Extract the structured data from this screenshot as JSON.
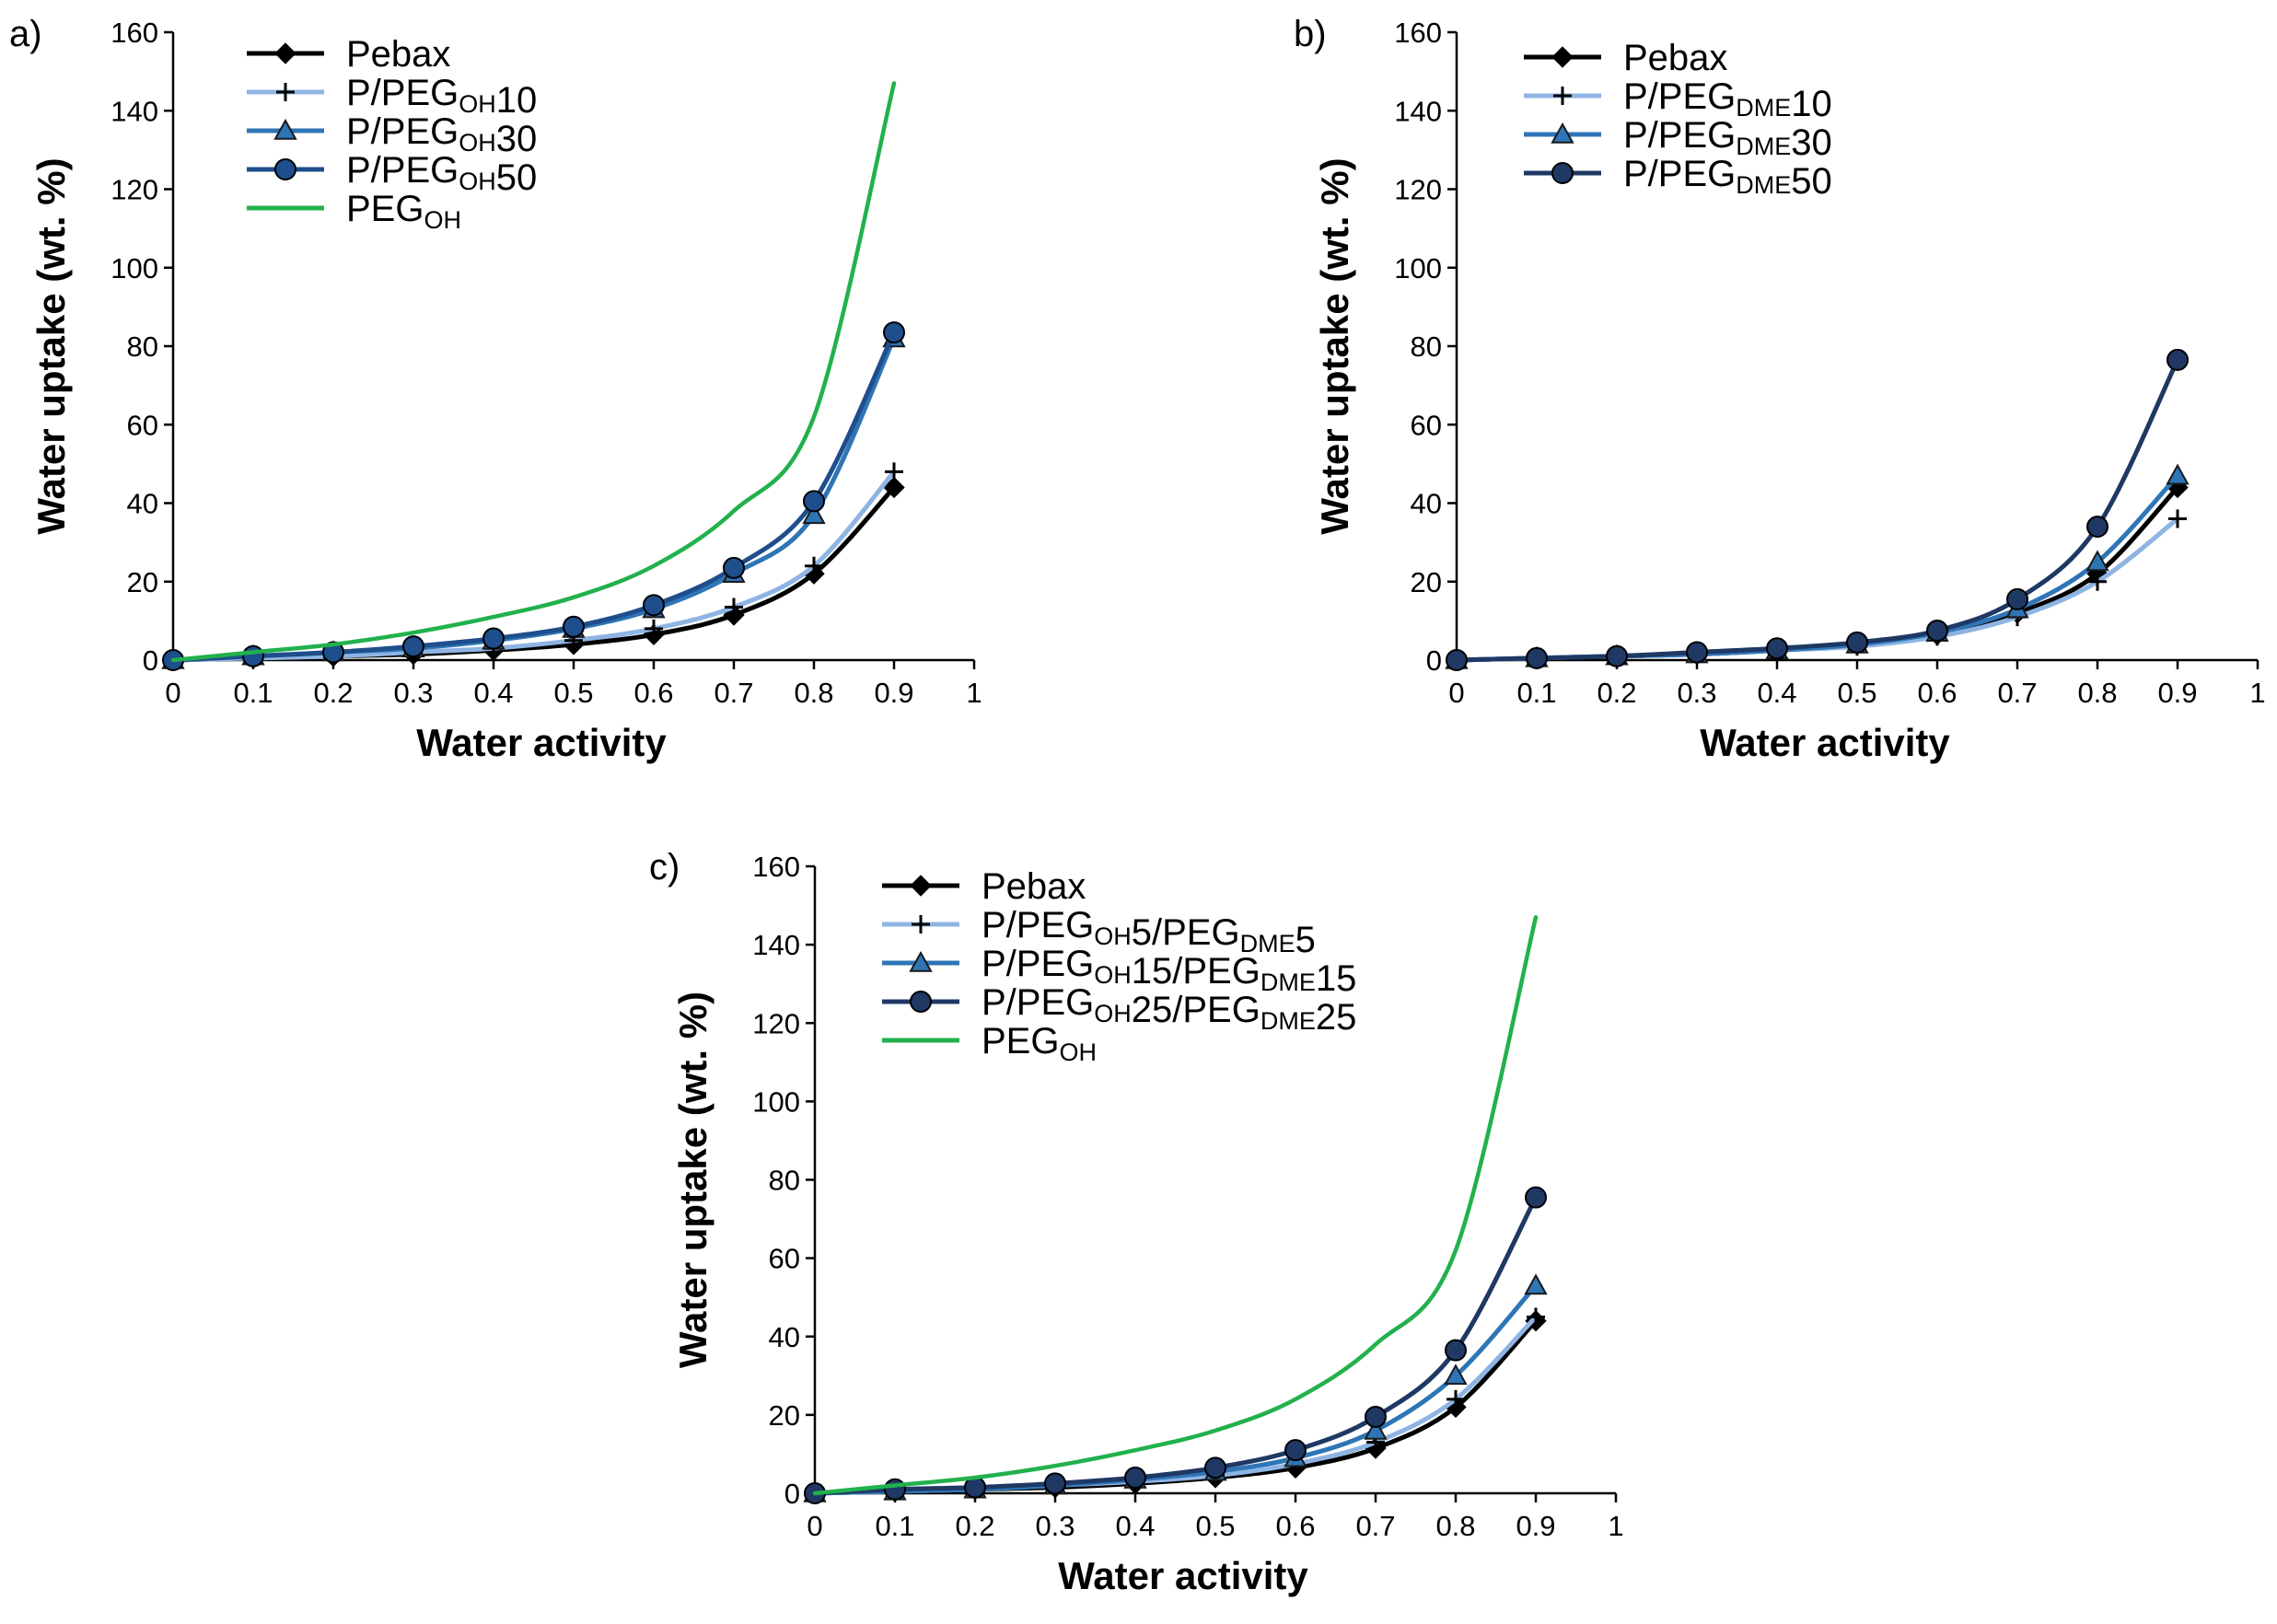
{
  "chart_data": [
    {
      "id": "a",
      "type": "line",
      "panel_label": "a)",
      "xlabel": "Water activity",
      "ylabel": "Water uptake (wt. %)",
      "xlim": [
        0,
        1
      ],
      "ylim": [
        0,
        160
      ],
      "x_ticks": [
        "0",
        "0.1",
        "0.2",
        "0.3",
        "0.4",
        "0.5",
        "0.6",
        "0.7",
        "0.8",
        "0.9",
        "1"
      ],
      "y_ticks": [
        "0",
        "20",
        "40",
        "60",
        "80",
        "100",
        "120",
        "140",
        "160"
      ],
      "legend_position": "top-left",
      "series": [
        {
          "name": "Pebax",
          "label": {
            "base": "Pebax",
            "sub": "",
            "suffix": ""
          },
          "marker": "diamond",
          "color": "#000000",
          "x": [
            0,
            0.1,
            0.2,
            0.3,
            0.4,
            0.5,
            0.6,
            0.7,
            0.8,
            0.9
          ],
          "y": [
            0,
            0.5,
            1.0,
            1.5,
            2.5,
            4.0,
            6.5,
            11.5,
            22,
            44
          ]
        },
        {
          "name": "P/PEGOH10",
          "label": {
            "base": "P/PEG",
            "sub": "OH",
            "suffix": "10"
          },
          "marker": "plus",
          "color": "#8eb4e3",
          "x": [
            0,
            0.1,
            0.2,
            0.3,
            0.4,
            0.5,
            0.6,
            0.7,
            0.8,
            0.9
          ],
          "y": [
            0,
            0.5,
            1.0,
            2.0,
            3.0,
            5.0,
            8.0,
            13.5,
            24,
            48
          ]
        },
        {
          "name": "P/PEGOH30",
          "label": {
            "base": "P/PEG",
            "sub": "OH",
            "suffix": "30"
          },
          "marker": "triangle",
          "color": "#2e75b6",
          "x": [
            0,
            0.1,
            0.2,
            0.3,
            0.4,
            0.5,
            0.6,
            0.7,
            0.8,
            0.9
          ],
          "y": [
            0,
            1.0,
            2.0,
            3.0,
            5.0,
            8.0,
            13,
            22,
            37,
            82
          ]
        },
        {
          "name": "P/PEGOH50",
          "label": {
            "base": "P/PEG",
            "sub": "OH",
            "suffix": "50"
          },
          "marker": "circle",
          "color": "#1f4e8c",
          "x": [
            0,
            0.1,
            0.2,
            0.3,
            0.4,
            0.5,
            0.6,
            0.7,
            0.8,
            0.9
          ],
          "y": [
            0,
            1.0,
            2.0,
            3.5,
            5.5,
            8.5,
            14,
            23.5,
            40.5,
            83.5
          ]
        },
        {
          "name": "PEGOH",
          "label": {
            "base": "PEG",
            "sub": "OH",
            "suffix": ""
          },
          "marker": "none",
          "color": "#22b14c",
          "x": [
            0,
            0.1,
            0.2,
            0.3,
            0.4,
            0.5,
            0.6,
            0.7,
            0.8,
            0.9
          ],
          "y": [
            0,
            2.0,
            4.0,
            7.0,
            11,
            16,
            24,
            38,
            62,
            147
          ]
        }
      ]
    },
    {
      "id": "b",
      "type": "line",
      "panel_label": "b)",
      "xlabel": "Water activity",
      "ylabel": "Water uptake (wt. %)",
      "xlim": [
        0,
        1
      ],
      "ylim": [
        0,
        160
      ],
      "x_ticks": [
        "0",
        "0.1",
        "0.2",
        "0.3",
        "0.4",
        "0.5",
        "0.6",
        "0.7",
        "0.8",
        "0.9",
        "1"
      ],
      "y_ticks": [
        "0",
        "20",
        "40",
        "60",
        "80",
        "100",
        "120",
        "140",
        "160"
      ],
      "legend_position": "top-left",
      "series": [
        {
          "name": "Pebax",
          "label": {
            "base": "Pebax",
            "sub": "",
            "suffix": ""
          },
          "marker": "diamond",
          "color": "#000000",
          "x": [
            0,
            0.1,
            0.2,
            0.3,
            0.4,
            0.5,
            0.6,
            0.7,
            0.8,
            0.9
          ],
          "y": [
            0,
            0.5,
            1.0,
            1.5,
            2.5,
            4.0,
            6.5,
            12,
            22,
            44
          ]
        },
        {
          "name": "P/PEGDME10",
          "label": {
            "base": "P/PEG",
            "sub": "DME",
            "suffix": "10"
          },
          "marker": "plus",
          "color": "#8eb4e3",
          "x": [
            0,
            0.1,
            0.2,
            0.3,
            0.4,
            0.5,
            0.6,
            0.7,
            0.8,
            0.9
          ],
          "y": [
            0,
            0.5,
            1.0,
            1.5,
            2.5,
            3.5,
            6.0,
            11,
            20,
            36
          ]
        },
        {
          "name": "P/PEGDME30",
          "label": {
            "base": "P/PEG",
            "sub": "DME",
            "suffix": "30"
          },
          "marker": "triangle",
          "color": "#2e75b6",
          "x": [
            0,
            0.1,
            0.2,
            0.3,
            0.4,
            0.5,
            0.6,
            0.7,
            0.8,
            0.9
          ],
          "y": [
            0,
            0.5,
            1.0,
            1.5,
            2.5,
            4.0,
            7.0,
            13,
            25,
            47
          ]
        },
        {
          "name": "P/PEGDME50",
          "label": {
            "base": "P/PEG",
            "sub": "DME",
            "suffix": "50"
          },
          "marker": "circle",
          "color": "#1f3864",
          "x": [
            0,
            0.1,
            0.2,
            0.3,
            0.4,
            0.5,
            0.6,
            0.7,
            0.8,
            0.9
          ],
          "y": [
            0,
            0.5,
            1.0,
            2.0,
            3.0,
            4.5,
            7.5,
            15.5,
            34,
            76.5
          ]
        }
      ]
    },
    {
      "id": "c",
      "type": "line",
      "panel_label": "c)",
      "xlabel": "Water activity",
      "ylabel": "Water uptake (wt. %)",
      "xlim": [
        0,
        1
      ],
      "ylim": [
        0,
        160
      ],
      "x_ticks": [
        "0",
        "0.1",
        "0.2",
        "0.3",
        "0.4",
        "0.5",
        "0.6",
        "0.7",
        "0.8",
        "0.9",
        "1"
      ],
      "y_ticks": [
        "0",
        "20",
        "40",
        "60",
        "80",
        "100",
        "120",
        "140",
        "160"
      ],
      "legend_position": "top-left",
      "series": [
        {
          "name": "Pebax",
          "label": {
            "base": "Pebax",
            "sub": "",
            "suffix": ""
          },
          "marker": "diamond",
          "color": "#000000",
          "x": [
            0,
            0.1,
            0.2,
            0.3,
            0.4,
            0.5,
            0.6,
            0.7,
            0.8,
            0.9
          ],
          "y": [
            0,
            0.5,
            1.0,
            1.5,
            2.5,
            4.0,
            6.5,
            11.5,
            22,
            44
          ]
        },
        {
          "name": "P/PEGOH5/PEGDME5",
          "label": {
            "base": "P/PEG",
            "sub": "OH",
            "suffix": "5/PEG",
            "sub2": "DME",
            "suffix2": "5"
          },
          "marker": "plus",
          "color": "#8eb4e3",
          "x": [
            0,
            0.1,
            0.2,
            0.3,
            0.4,
            0.5,
            0.6,
            0.7,
            0.8,
            0.9
          ],
          "y": [
            0,
            0.5,
            1.0,
            2.0,
            3.0,
            4.5,
            7.5,
            13,
            24,
            45
          ]
        },
        {
          "name": "P/PEGOH15/PEGDME15",
          "label": {
            "base": "P/PEG",
            "sub": "OH",
            "suffix": "15/PEG",
            "sub2": "DME",
            "suffix2": "15"
          },
          "marker": "triangle",
          "color": "#2e75b6",
          "x": [
            0,
            0.1,
            0.2,
            0.3,
            0.4,
            0.5,
            0.6,
            0.7,
            0.8,
            0.9
          ],
          "y": [
            0,
            0.5,
            1.0,
            2.0,
            3.5,
            5.5,
            9.0,
            16,
            30,
            53
          ]
        },
        {
          "name": "P/PEGOH25/PEGDME25",
          "label": {
            "base": "P/PEG",
            "sub": "OH",
            "suffix": "25/PEG",
            "sub2": "DME",
            "suffix2": "25"
          },
          "marker": "circle",
          "color": "#1f3864",
          "x": [
            0,
            0.1,
            0.2,
            0.3,
            0.4,
            0.5,
            0.6,
            0.7,
            0.8,
            0.9
          ],
          "y": [
            0,
            1.0,
            1.5,
            2.5,
            4.0,
            6.5,
            11,
            19.5,
            36.5,
            75.5
          ]
        },
        {
          "name": "PEGOH",
          "label": {
            "base": "PEG",
            "sub": "OH",
            "suffix": ""
          },
          "marker": "none",
          "color": "#22b14c",
          "x": [
            0,
            0.1,
            0.2,
            0.3,
            0.4,
            0.5,
            0.6,
            0.7,
            0.8,
            0.9
          ],
          "y": [
            0,
            2.0,
            4.0,
            7.0,
            11,
            16,
            24,
            38,
            62,
            147
          ]
        }
      ]
    }
  ]
}
